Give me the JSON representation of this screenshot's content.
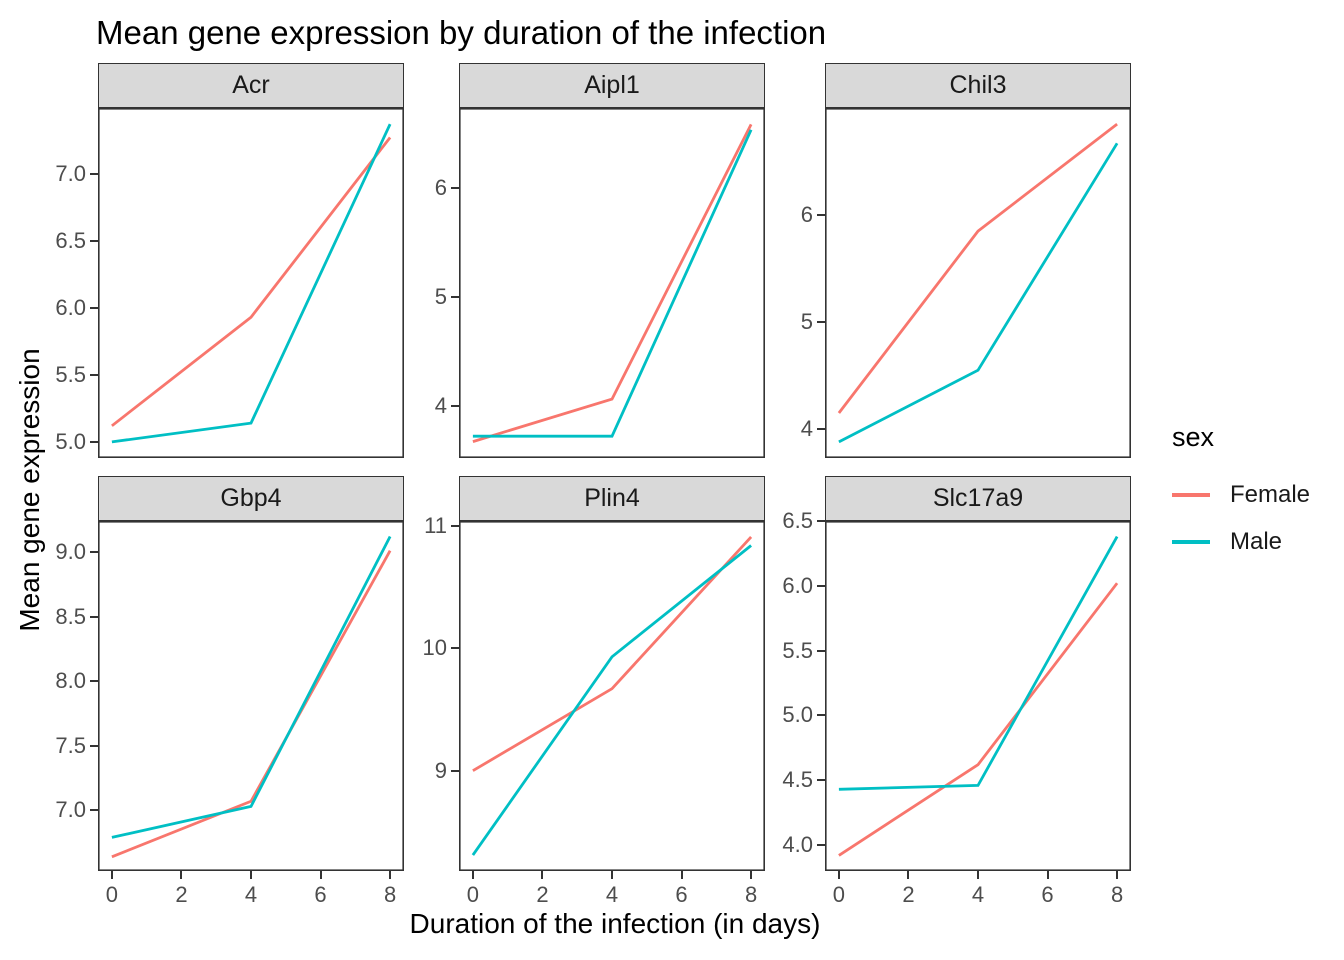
{
  "title": "Mean gene expression by duration of the infection",
  "axes": {
    "x_title": "Duration of the infection (in days)",
    "y_title": "Mean gene expression"
  },
  "legend": {
    "title": "sex",
    "entries": [
      {
        "label": "Female",
        "color": "#F8766D"
      },
      {
        "label": "Male",
        "color": "#00BFC4"
      }
    ]
  },
  "colors": {
    "female": "#F8766D",
    "male": "#00BFC4",
    "strip_bg": "#D9D9D9",
    "panel_border": "#333333",
    "tick_text": "#4D4D4D"
  },
  "chart_data": [
    {
      "type": "line",
      "facet": "Acr",
      "x": [
        0,
        4,
        8
      ],
      "x_ticks": [
        0,
        2,
        4,
        6,
        8
      ],
      "x_tick_labels": [
        "0",
        "2",
        "4",
        "6",
        "8"
      ],
      "show_x_labels": false,
      "xlim": [
        -0.4,
        8.4
      ],
      "ylim": [
        4.88,
        7.49
      ],
      "y_ticks": [
        5.0,
        5.5,
        6.0,
        6.5,
        7.0
      ],
      "y_tick_labels": [
        "5.0",
        "5.5",
        "6.0",
        "6.5",
        "7.0"
      ],
      "series": [
        {
          "name": "Female",
          "color": "#F8766D",
          "values": [
            5.12,
            5.93,
            7.27
          ]
        },
        {
          "name": "Male",
          "color": "#00BFC4",
          "values": [
            5.0,
            5.14,
            7.37
          ]
        }
      ]
    },
    {
      "type": "line",
      "facet": "Aipl1",
      "x": [
        0,
        4,
        8
      ],
      "x_ticks": [
        0,
        2,
        4,
        6,
        8
      ],
      "x_tick_labels": [
        "0",
        "2",
        "4",
        "6",
        "8"
      ],
      "show_x_labels": false,
      "xlim": [
        -0.4,
        8.4
      ],
      "ylim": [
        3.52,
        6.73
      ],
      "y_ticks": [
        4,
        5,
        6
      ],
      "y_tick_labels": [
        "4",
        "5",
        "6"
      ],
      "series": [
        {
          "name": "Female",
          "color": "#F8766D",
          "values": [
            3.67,
            4.06,
            6.58
          ]
        },
        {
          "name": "Male",
          "color": "#00BFC4",
          "values": [
            3.72,
            3.72,
            6.53
          ]
        }
      ]
    },
    {
      "type": "line",
      "facet": "Chil3",
      "x": [
        0,
        4,
        8
      ],
      "x_ticks": [
        0,
        2,
        4,
        6,
        8
      ],
      "x_tick_labels": [
        "0",
        "2",
        "4",
        "6",
        "8"
      ],
      "show_x_labels": false,
      "xlim": [
        -0.4,
        8.4
      ],
      "ylim": [
        3.73,
        7.0
      ],
      "y_ticks": [
        4,
        5,
        6
      ],
      "y_tick_labels": [
        "4",
        "5",
        "6"
      ],
      "series": [
        {
          "name": "Female",
          "color": "#F8766D",
          "values": [
            4.15,
            5.85,
            6.85
          ]
        },
        {
          "name": "Male",
          "color": "#00BFC4",
          "values": [
            3.88,
            4.55,
            6.67
          ]
        }
      ]
    },
    {
      "type": "line",
      "facet": "Gbp4",
      "x": [
        0,
        4,
        8
      ],
      "x_ticks": [
        0,
        2,
        4,
        6,
        8
      ],
      "x_tick_labels": [
        "0",
        "2",
        "4",
        "6",
        "8"
      ],
      "show_x_labels": true,
      "xlim": [
        -0.4,
        8.4
      ],
      "ylim": [
        6.53,
        9.24
      ],
      "y_ticks": [
        7.0,
        7.5,
        8.0,
        8.5,
        9.0
      ],
      "y_tick_labels": [
        "7.0",
        "7.5",
        "8.0",
        "8.5",
        "9.0"
      ],
      "series": [
        {
          "name": "Female",
          "color": "#F8766D",
          "values": [
            6.64,
            7.07,
            9.01
          ]
        },
        {
          "name": "Male",
          "color": "#00BFC4",
          "values": [
            6.79,
            7.03,
            9.12
          ]
        }
      ]
    },
    {
      "type": "line",
      "facet": "Plin4",
      "x": [
        0,
        4,
        8
      ],
      "x_ticks": [
        0,
        2,
        4,
        6,
        8
      ],
      "x_tick_labels": [
        "0",
        "2",
        "4",
        "6",
        "8"
      ],
      "show_x_labels": true,
      "xlim": [
        -0.4,
        8.4
      ],
      "ylim": [
        8.18,
        11.04
      ],
      "y_ticks": [
        9,
        10,
        11
      ],
      "y_tick_labels": [
        "9",
        "10",
        "11"
      ],
      "series": [
        {
          "name": "Female",
          "color": "#F8766D",
          "values": [
            9.0,
            9.67,
            10.91
          ]
        },
        {
          "name": "Male",
          "color": "#00BFC4",
          "values": [
            8.31,
            9.93,
            10.84
          ]
        }
      ]
    },
    {
      "type": "line",
      "facet": "Slc17a9",
      "x": [
        0,
        4,
        8
      ],
      "x_ticks": [
        0,
        2,
        4,
        6,
        8
      ],
      "x_tick_labels": [
        "0",
        "2",
        "4",
        "6",
        "8"
      ],
      "show_x_labels": true,
      "xlim": [
        -0.4,
        8.4
      ],
      "ylim": [
        3.8,
        6.5
      ],
      "y_ticks": [
        4.0,
        4.5,
        5.0,
        5.5,
        6.0,
        6.5
      ],
      "y_tick_labels": [
        "4.0",
        "4.5",
        "5.0",
        "5.5",
        "6.0",
        "6.5"
      ],
      "series": [
        {
          "name": "Female",
          "color": "#F8766D",
          "values": [
            3.92,
            4.62,
            6.02
          ]
        },
        {
          "name": "Male",
          "color": "#00BFC4",
          "values": [
            4.43,
            4.46,
            6.38
          ]
        }
      ]
    }
  ]
}
